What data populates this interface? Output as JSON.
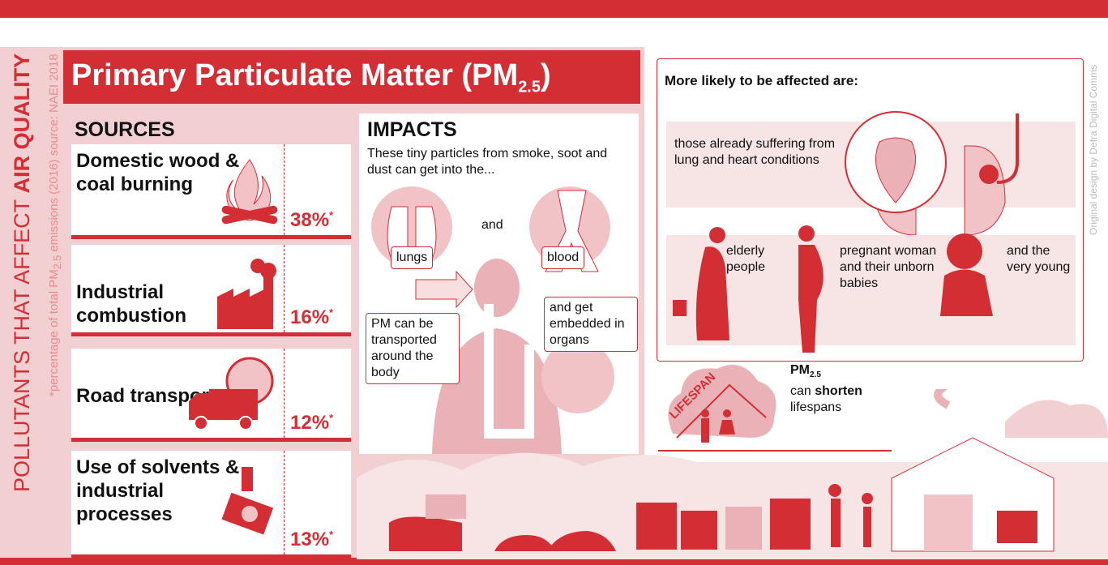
{
  "side": {
    "main": "POLLUTANTS THAT AFFECT",
    "bold": "AIR QUALITY",
    "note_start": "*percentage of total PM",
    "note_sub": "2.5",
    "note_end": " emissions (2016) source: NAEI 2018"
  },
  "title": {
    "main": "Primary Particulate Matter (PM",
    "sub": "2.5",
    "end": ")"
  },
  "sources": {
    "heading": "SOURCES",
    "items": [
      {
        "name": "Domestic wood & coal burning",
        "percent": "38%",
        "mark": "*"
      },
      {
        "name": "Industrial combustion",
        "percent": "16%",
        "mark": "*"
      },
      {
        "name": "Road transport",
        "percent": "12%",
        "mark": "*"
      },
      {
        "name": "Use of solvents & industrial processes",
        "percent": "13%",
        "mark": "*"
      }
    ]
  },
  "impacts": {
    "heading": "IMPACTS",
    "intro": "These tiny particles from smoke, soot and dust can get into the...",
    "lungs": "lungs",
    "and": "and",
    "blood": "blood",
    "transport": "PM can be transported around the body",
    "organs": "and get embedded in organs"
  },
  "affected": {
    "heading": "More likely to be affected are:",
    "conditions": "those already suffering from lung and heart conditions",
    "groups": [
      "elderly people",
      "pregnant woman and their unborn babies",
      "and the very young"
    ]
  },
  "lifespan": {
    "badge": "LIFESPAN",
    "pm": "PM",
    "sub": "2.5",
    "can": "can ",
    "shorten": "shorten",
    "rest": "lifespans"
  },
  "credit": "Original design by Defra Digital Comms"
}
